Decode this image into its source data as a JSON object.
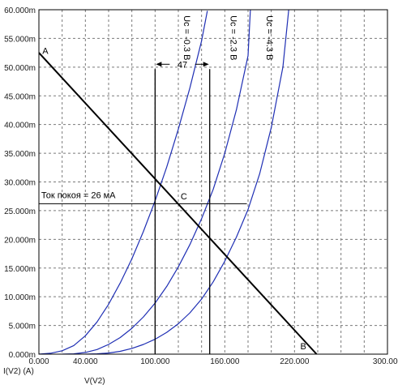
{
  "chart_data": {
    "type": "line",
    "xlabel": "V(V2)",
    "ylabel": "I(V2) (A)",
    "xlim": [
      0,
      300
    ],
    "ylim": [
      0,
      60
    ],
    "x_tick_values": [
      0,
      20,
      40,
      60,
      80,
      100,
      120,
      140,
      160,
      180,
      200,
      220,
      240,
      260,
      280,
      300
    ],
    "x_tick_labels": [
      "0.000",
      "",
      "40.000",
      "",
      "",
      "100.000",
      "",
      "",
      "160.000",
      "",
      "",
      "220.000",
      "",
      "",
      "",
      "300.000"
    ],
    "y_tick_values": [
      0,
      5,
      10,
      15,
      20,
      25,
      30,
      35,
      40,
      45,
      50,
      55,
      60
    ],
    "y_tick_labels": [
      "0.000m",
      "5.000m",
      "10.000m",
      "15.000m",
      "20.000m",
      "25.000m",
      "30.000m",
      "35.000m",
      "40.000m",
      "45.000m",
      "50.000m",
      "55.000m",
      "60.000m"
    ],
    "grid": true,
    "series": [
      {
        "name": "Uc = -0.3 B",
        "color": "#1f2fb4",
        "x": [
          0,
          10,
          20,
          30,
          40,
          50,
          60,
          70,
          80,
          90,
          100,
          110,
          120,
          130,
          140,
          145
        ],
        "y": [
          0,
          0.15,
          0.6,
          1.5,
          3.2,
          5.6,
          8.7,
          12.4,
          16.6,
          21.4,
          26.7,
          32.6,
          39.2,
          46.4,
          54.6,
          59.8
        ]
      },
      {
        "name": "Uc = -2.3 B",
        "color": "#1f2fb4",
        "x": [
          20,
          30,
          40,
          50,
          60,
          70,
          80,
          90,
          100,
          110,
          120,
          130,
          140,
          150,
          160,
          170,
          180,
          182
        ],
        "y": [
          0,
          0.06,
          0.3,
          0.8,
          1.7,
          2.9,
          4.5,
          6.5,
          8.9,
          11.8,
          15.2,
          19.1,
          23.6,
          28.7,
          35.0,
          42.6,
          52.0,
          60
        ]
      },
      {
        "name": "Uc = -4.3 B",
        "color": "#1f2fb4",
        "x": [
          40,
          50,
          60,
          70,
          80,
          90,
          100,
          110,
          120,
          130,
          140,
          150,
          160,
          170,
          180,
          190,
          200,
          210,
          215
        ],
        "y": [
          0,
          0.05,
          0.2,
          0.5,
          1.0,
          1.7,
          2.6,
          3.8,
          5.3,
          7.2,
          9.6,
          12.6,
          16.2,
          20.4,
          25.2,
          31.4,
          39.5,
          50.0,
          60
        ]
      },
      {
        "name": "Load line",
        "color": "#000000",
        "x": [
          0,
          239
        ],
        "y": [
          52.5,
          0
        ]
      }
    ],
    "annotations": {
      "point_a": "A",
      "point_b": "B",
      "point_c": "C",
      "quiescent_current": "Ток покоя = 26 мА",
      "span_value": "47",
      "curve_label_1": "Uc = -0.3 B",
      "curve_label_2": "Uc = -2.3 B",
      "curve_label_3": "Uc = -4.3 B"
    },
    "guides": {
      "quiescent_y": 26.2,
      "quiescent_x_from": 0,
      "quiescent_x_to": 179,
      "vertical_line_1_x": 100,
      "vertical_line_2_x": 147,
      "vertical_lines_y_top": 50.5,
      "span_arrow_y": 50.5
    }
  }
}
